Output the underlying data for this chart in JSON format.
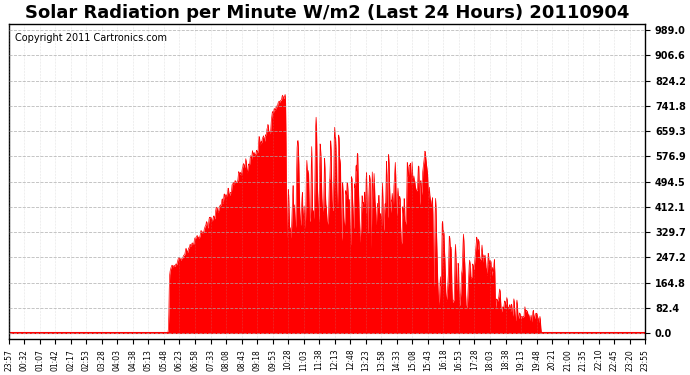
{
  "title": "Solar Radiation per Minute W/m2 (Last 24 Hours) 20110904",
  "copyright": "Copyright 2011 Cartronics.com",
  "ylabel_right": true,
  "yticks": [
    0.0,
    82.4,
    164.8,
    247.2,
    329.7,
    412.1,
    494.5,
    576.9,
    659.3,
    741.8,
    824.2,
    906.6,
    989.0
  ],
  "ymax": 1010.0,
  "ymin": -20.0,
  "line_color": "#FF0000",
  "fill_color": "#FF0000",
  "background_color": "#FFFFFF",
  "grid_color": "#AAAAAA",
  "title_fontsize": 13,
  "copyright_fontsize": 7,
  "x_labels": [
    "23:57",
    "00:32",
    "01:07",
    "01:42",
    "02:17",
    "02:53",
    "03:28",
    "04:03",
    "04:38",
    "05:13",
    "05:48",
    "06:23",
    "06:58",
    "07:33",
    "08:08",
    "08:43",
    "09:18",
    "09:53",
    "10:28",
    "11:03",
    "11:38",
    "12:13",
    "12:48",
    "13:23",
    "13:58",
    "14:33",
    "15:08",
    "15:43",
    "16:18",
    "16:53",
    "17:28",
    "18:03",
    "18:38",
    "19:13",
    "19:48",
    "20:21",
    "21:00",
    "21:35",
    "22:10",
    "22:45",
    "23:20",
    "23:55"
  ]
}
